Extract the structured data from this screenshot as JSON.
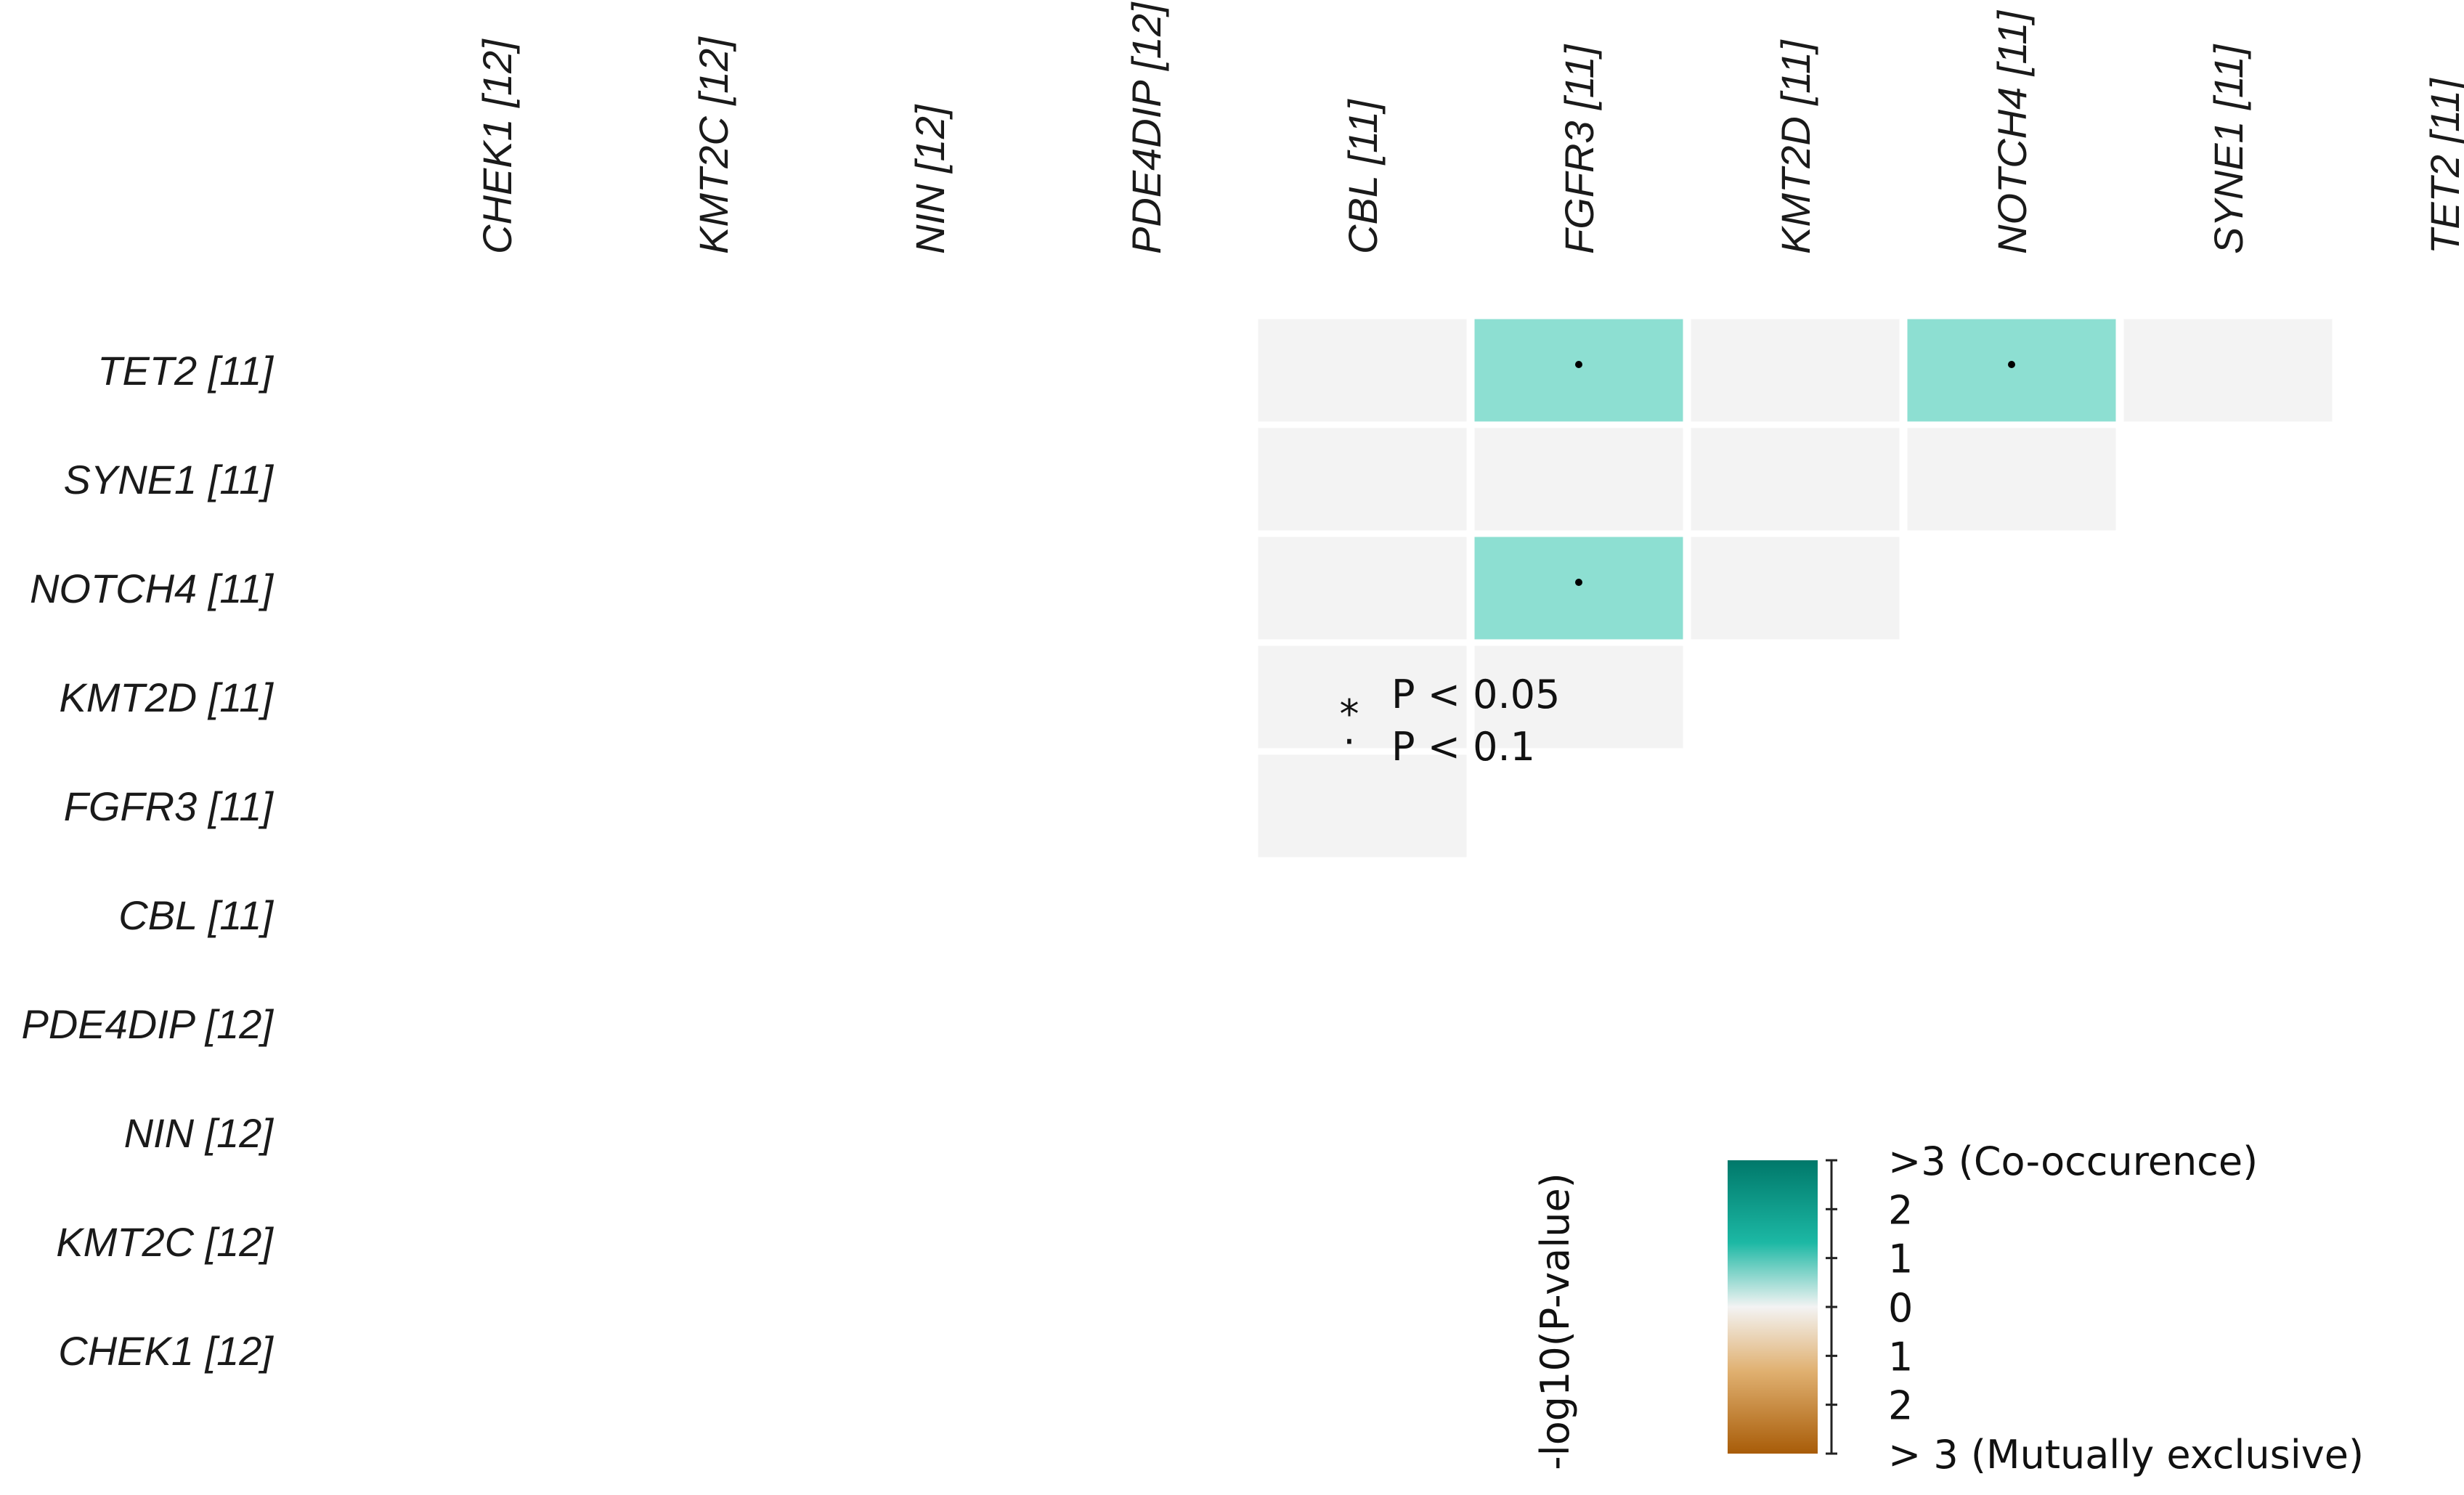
{
  "chart_data": {
    "type": "heatmap",
    "title": "",
    "column_genes": [
      "CHEK1 [12]",
      "KMT2C [12]",
      "NIN [12]",
      "PDE4DIP [12]",
      "CBL [11]",
      "FGFR3 [11]",
      "KMT2D [11]",
      "NOTCH4 [11]",
      "SYNE1 [11]",
      "TET2 [11]"
    ],
    "row_genes": [
      "TET2 [11]",
      "SYNE1 [11]",
      "NOTCH4 [11]",
      "KMT2D [11]",
      "FGFR3 [11]",
      "CBL [11]",
      "PDE4DIP [12]",
      "NIN [12]",
      "KMT2C [12]",
      "CHEK1 [12]"
    ],
    "cells": [
      {
        "row": "TET2 [11]",
        "col": "CBL [11]",
        "value": 0,
        "sig": ""
      },
      {
        "row": "TET2 [11]",
        "col": "FGFR3 [11]",
        "value": 1.2,
        "sig": "dot"
      },
      {
        "row": "TET2 [11]",
        "col": "KMT2D [11]",
        "value": 0,
        "sig": ""
      },
      {
        "row": "TET2 [11]",
        "col": "NOTCH4 [11]",
        "value": 1.2,
        "sig": "dot"
      },
      {
        "row": "TET2 [11]",
        "col": "SYNE1 [11]",
        "value": 0,
        "sig": ""
      },
      {
        "row": "SYNE1 [11]",
        "col": "CBL [11]",
        "value": 0,
        "sig": ""
      },
      {
        "row": "SYNE1 [11]",
        "col": "FGFR3 [11]",
        "value": 0,
        "sig": ""
      },
      {
        "row": "SYNE1 [11]",
        "col": "KMT2D [11]",
        "value": 0,
        "sig": ""
      },
      {
        "row": "SYNE1 [11]",
        "col": "NOTCH4 [11]",
        "value": 0,
        "sig": ""
      },
      {
        "row": "NOTCH4 [11]",
        "col": "CBL [11]",
        "value": 0,
        "sig": ""
      },
      {
        "row": "NOTCH4 [11]",
        "col": "FGFR3 [11]",
        "value": 1.2,
        "sig": "dot"
      },
      {
        "row": "NOTCH4 [11]",
        "col": "KMT2D [11]",
        "value": 0,
        "sig": ""
      },
      {
        "row": "KMT2D [11]",
        "col": "CBL [11]",
        "value": 0,
        "sig": ""
      },
      {
        "row": "KMT2D [11]",
        "col": "FGFR3 [11]",
        "value": 0,
        "sig": ""
      },
      {
        "row": "FGFR3 [11]",
        "col": "CBL [11]",
        "value": 0,
        "sig": ""
      }
    ],
    "significance_legend": [
      {
        "symbol": "*",
        "label": "P < 0.05"
      },
      {
        "symbol": "·",
        "label": "P < 0.1"
      }
    ],
    "colorbar": {
      "title": "-log10(P-value)",
      "labels": [
        ">3 (Co-occurence)",
        "2",
        "1",
        "0",
        "1",
        "2",
        "> 3 (Mutually exclusive)"
      ],
      "range": [
        -3,
        3
      ],
      "colors": {
        "co_occurrence_max": "#00786a",
        "co_occurrence_mid": "#1cb8a4",
        "neutral": "#f3f3f3",
        "exclusive_mid": "#e0b070",
        "exclusive_max": "#a85c08"
      }
    },
    "colors": {
      "cell_co_occurrence_weak": "#8ddfd2",
      "cell_neutral": "#f3f3f3",
      "mark": "#000000"
    }
  }
}
